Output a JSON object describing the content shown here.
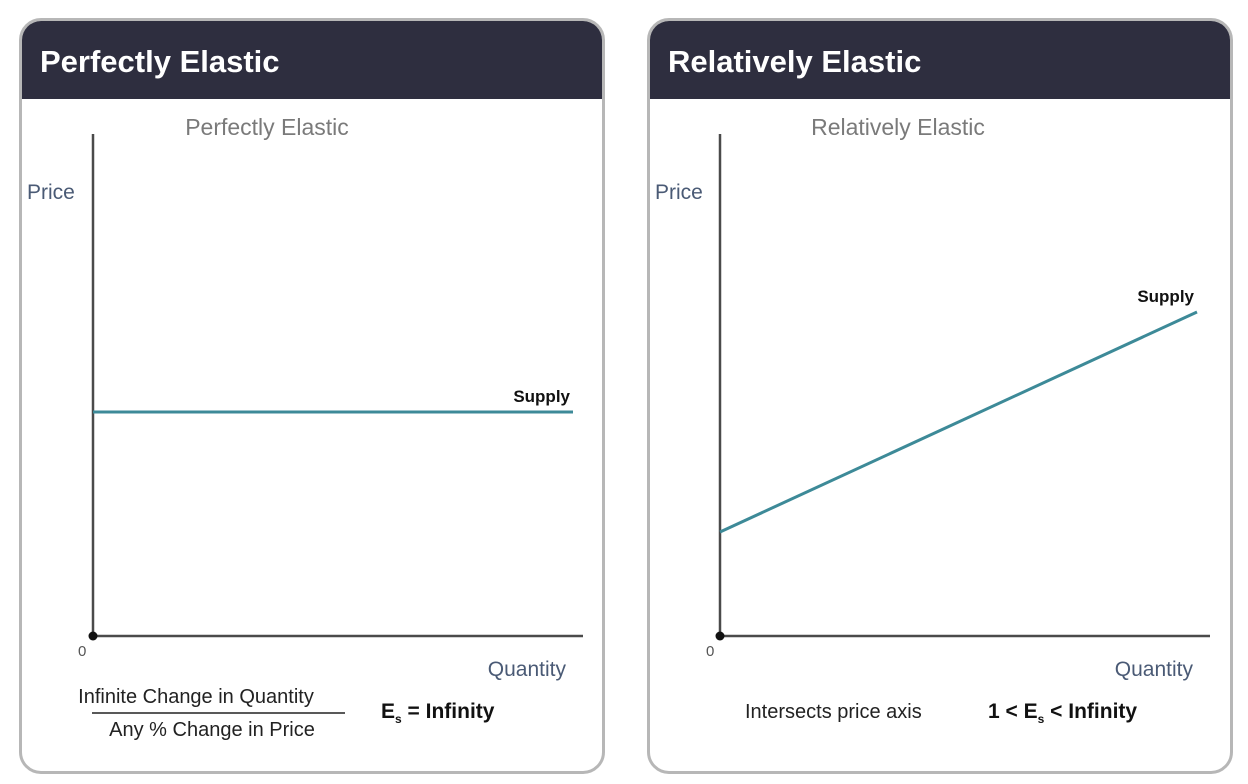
{
  "chart_data": [
    {
      "type": "line",
      "header": "Perfectly Elastic",
      "title": "Perfectly Elastic",
      "ylabel": "Price",
      "xlabel": "Quantity",
      "origin_label": "0",
      "xlim": [
        0,
        10
      ],
      "ylim": [
        0,
        10
      ],
      "grid": false,
      "series": [
        {
          "name": "Supply",
          "x": [
            0,
            10
          ],
          "y": [
            5.6,
            5.6
          ]
        }
      ],
      "formula": {
        "numerator": "Infinite Change in Quantity",
        "denominator": "Any % Change in Price",
        "equation": {
          "prefix": "E",
          "subscript": "s",
          "suffix": " = Infinity"
        }
      },
      "colors": {
        "line": "#3d8a98",
        "axis": "#4a4a4a"
      }
    },
    {
      "type": "line",
      "header": "Relatively Elastic",
      "title": "Relatively Elastic",
      "ylabel": "Price",
      "xlabel": "Quantity",
      "origin_label": "0",
      "xlim": [
        0,
        10
      ],
      "ylim": [
        0,
        10
      ],
      "grid": false,
      "series": [
        {
          "name": "Supply",
          "x": [
            0,
            10
          ],
          "y": [
            2.6,
            8.1
          ]
        }
      ],
      "formula": {
        "note": "Intersects price axis",
        "equation": {
          "prefix": "1 < E",
          "subscript": "s",
          "suffix": " < Infinity"
        }
      },
      "colors": {
        "line": "#3d8a98",
        "axis": "#4a4a4a"
      }
    }
  ]
}
